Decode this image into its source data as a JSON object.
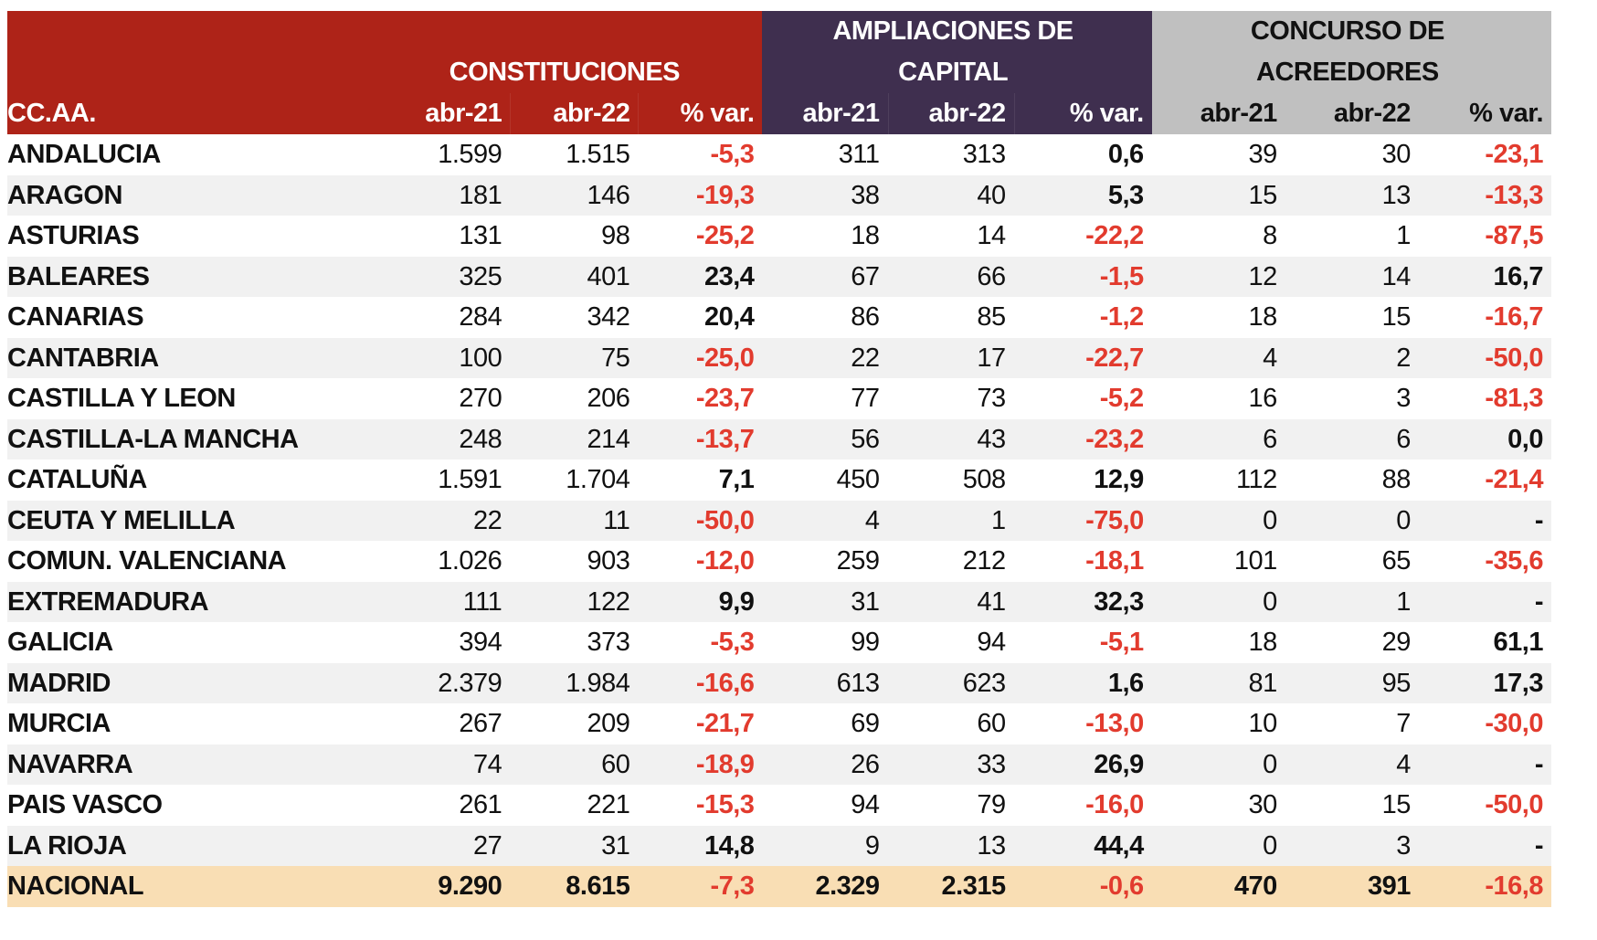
{
  "header": {
    "region_label": "CC.AA.",
    "groups": [
      {
        "title_line1": "",
        "title_line2": "CONSTITUCIONES",
        "color": "#ae2318"
      },
      {
        "title_line1": "AMPLIACIONES DE",
        "title_line2": "CAPITAL",
        "color": "#3f2f4f"
      },
      {
        "title_line1": "CONCURSO DE",
        "title_line2": "ACREEDORES",
        "color": "#c0c0c0"
      }
    ],
    "subcols": [
      "abr-21",
      "abr-22",
      "% var."
    ]
  },
  "colors": {
    "negative": "#e23b2e",
    "total_row_bg": "#f9deb4",
    "stripe_bg": "#f1f1f1"
  },
  "rows": [
    {
      "name": "ANDALUCIA",
      "c": [
        "1.599",
        "1.515",
        "-5,3"
      ],
      "a": [
        "311",
        "313",
        "0,6"
      ],
      "k": [
        "39",
        "30",
        "-23,1"
      ]
    },
    {
      "name": "ARAGON",
      "c": [
        "181",
        "146",
        "-19,3"
      ],
      "a": [
        "38",
        "40",
        "5,3"
      ],
      "k": [
        "15",
        "13",
        "-13,3"
      ]
    },
    {
      "name": "ASTURIAS",
      "c": [
        "131",
        "98",
        "-25,2"
      ],
      "a": [
        "18",
        "14",
        "-22,2"
      ],
      "k": [
        "8",
        "1",
        "-87,5"
      ]
    },
    {
      "name": "BALEARES",
      "c": [
        "325",
        "401",
        "23,4"
      ],
      "a": [
        "67",
        "66",
        "-1,5"
      ],
      "k": [
        "12",
        "14",
        "16,7"
      ]
    },
    {
      "name": "CANARIAS",
      "c": [
        "284",
        "342",
        "20,4"
      ],
      "a": [
        "86",
        "85",
        "-1,2"
      ],
      "k": [
        "18",
        "15",
        "-16,7"
      ]
    },
    {
      "name": "CANTABRIA",
      "c": [
        "100",
        "75",
        "-25,0"
      ],
      "a": [
        "22",
        "17",
        "-22,7"
      ],
      "k": [
        "4",
        "2",
        "-50,0"
      ]
    },
    {
      "name": "CASTILLA Y LEON",
      "c": [
        "270",
        "206",
        "-23,7"
      ],
      "a": [
        "77",
        "73",
        "-5,2"
      ],
      "k": [
        "16",
        "3",
        "-81,3"
      ]
    },
    {
      "name": "CASTILLA-LA MANCHA",
      "c": [
        "248",
        "214",
        "-13,7"
      ],
      "a": [
        "56",
        "43",
        "-23,2"
      ],
      "k": [
        "6",
        "6",
        "0,0"
      ]
    },
    {
      "name": "CATALUÑA",
      "c": [
        "1.591",
        "1.704",
        "7,1"
      ],
      "a": [
        "450",
        "508",
        "12,9"
      ],
      "k": [
        "112",
        "88",
        "-21,4"
      ]
    },
    {
      "name": "CEUTA Y MELILLA",
      "c": [
        "22",
        "11",
        "-50,0"
      ],
      "a": [
        "4",
        "1",
        "-75,0"
      ],
      "k": [
        "0",
        "0",
        "-"
      ]
    },
    {
      "name": "COMUN. VALENCIANA",
      "c": [
        "1.026",
        "903",
        "-12,0"
      ],
      "a": [
        "259",
        "212",
        "-18,1"
      ],
      "k": [
        "101",
        "65",
        "-35,6"
      ]
    },
    {
      "name": "EXTREMADURA",
      "c": [
        "111",
        "122",
        "9,9"
      ],
      "a": [
        "31",
        "41",
        "32,3"
      ],
      "k": [
        "0",
        "1",
        "-"
      ]
    },
    {
      "name": "GALICIA",
      "c": [
        "394",
        "373",
        "-5,3"
      ],
      "a": [
        "99",
        "94",
        "-5,1"
      ],
      "k": [
        "18",
        "29",
        "61,1"
      ]
    },
    {
      "name": "MADRID",
      "c": [
        "2.379",
        "1.984",
        "-16,6"
      ],
      "a": [
        "613",
        "623",
        "1,6"
      ],
      "k": [
        "81",
        "95",
        "17,3"
      ]
    },
    {
      "name": "MURCIA",
      "c": [
        "267",
        "209",
        "-21,7"
      ],
      "a": [
        "69",
        "60",
        "-13,0"
      ],
      "k": [
        "10",
        "7",
        "-30,0"
      ]
    },
    {
      "name": "NAVARRA",
      "c": [
        "74",
        "60",
        "-18,9"
      ],
      "a": [
        "26",
        "33",
        "26,9"
      ],
      "k": [
        "0",
        "4",
        "-"
      ]
    },
    {
      "name": "PAIS VASCO",
      "c": [
        "261",
        "221",
        "-15,3"
      ],
      "a": [
        "94",
        "79",
        "-16,0"
      ],
      "k": [
        "30",
        "15",
        "-50,0"
      ]
    },
    {
      "name": "LA RIOJA",
      "c": [
        "27",
        "31",
        "14,8"
      ],
      "a": [
        "9",
        "13",
        "44,4"
      ],
      "k": [
        "0",
        "3",
        "-"
      ]
    }
  ],
  "total": {
    "name": "NACIONAL",
    "c": [
      "9.290",
      "8.615",
      "-7,3"
    ],
    "a": [
      "2.329",
      "2.315",
      "-0,6"
    ],
    "k": [
      "470",
      "391",
      "-16,8"
    ]
  }
}
